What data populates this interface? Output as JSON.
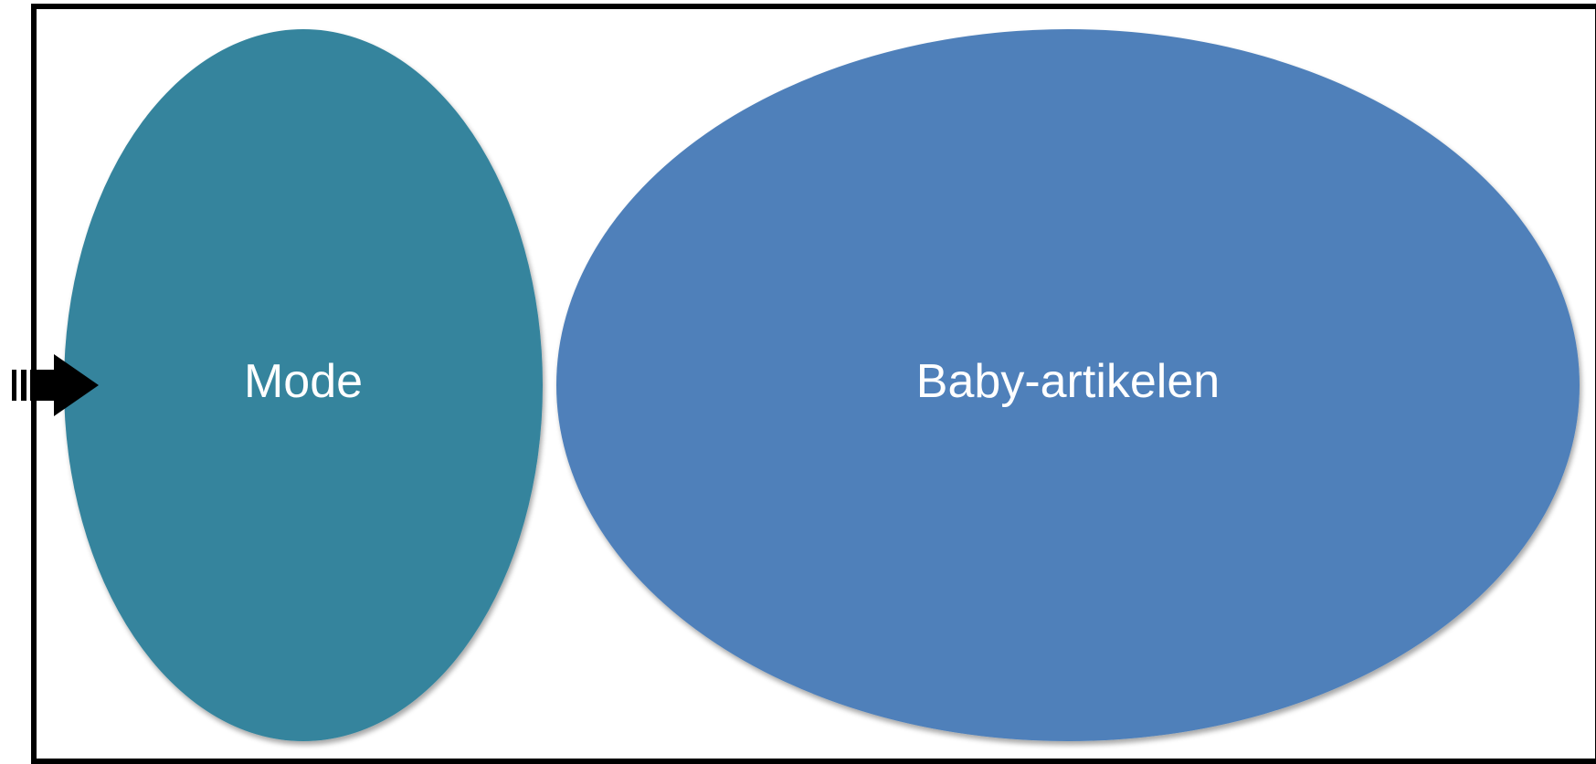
{
  "diagram": {
    "shapes": [
      {
        "id": "mode",
        "label": "Mode",
        "color": "#35849d"
      },
      {
        "id": "baby",
        "label": "Baby-artikelen",
        "color": "#4f80ba"
      }
    ],
    "frame_color": "#000000",
    "arrow_color": "#000000",
    "shadow_color": "#b8b8b8"
  }
}
